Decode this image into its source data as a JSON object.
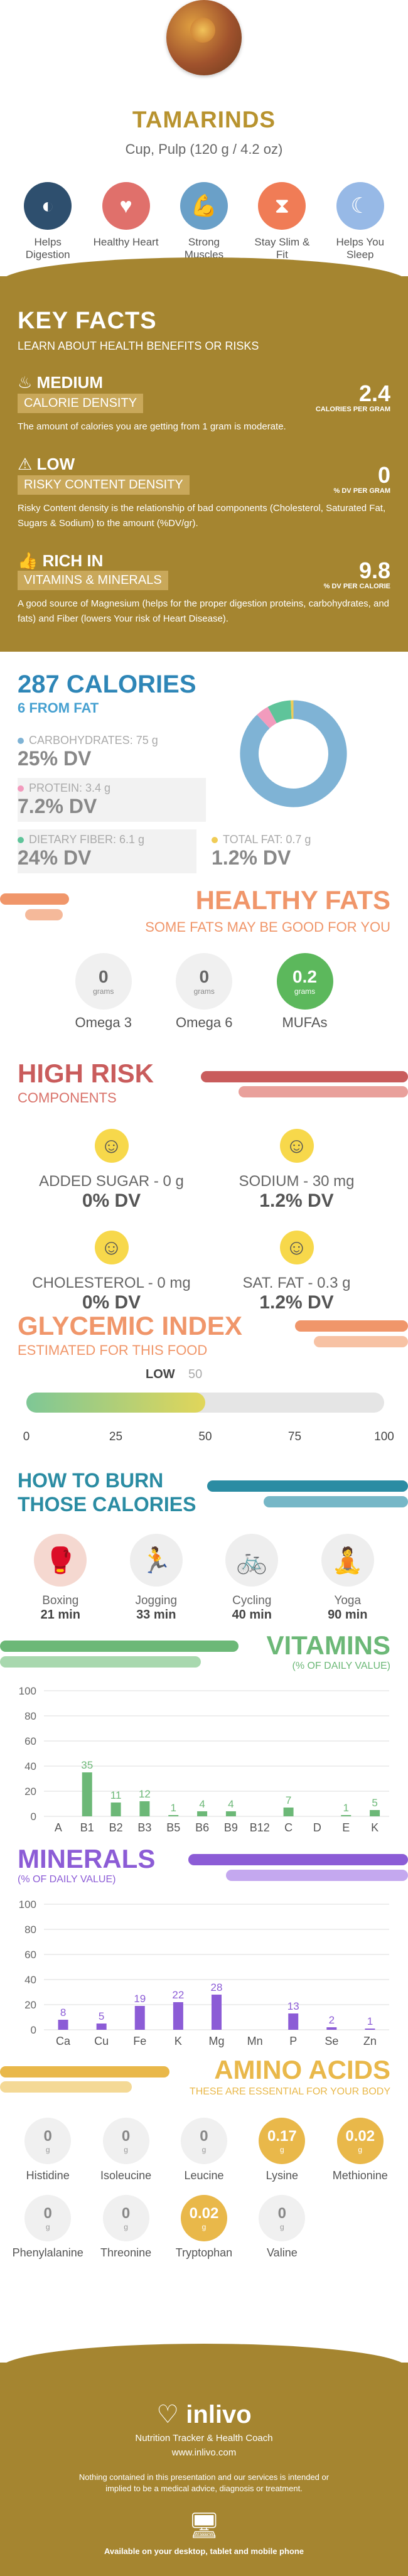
{
  "header": {
    "title": "TAMARINDS",
    "subtitle": "Cup, Pulp (120 g / 4.2 oz)"
  },
  "benefits": [
    {
      "label": "Helps Digestion",
      "icon": "stomach-icon",
      "color": "#2e4f6e"
    },
    {
      "label": "Healthy Heart",
      "icon": "heart-icon",
      "color": "#e0706b"
    },
    {
      "label": "Strong Muscles",
      "icon": "muscle-arm-icon",
      "color": "#6aa0c8"
    },
    {
      "label": "Stay Slim & Fit",
      "icon": "waist-icon",
      "color": "#f07c56"
    },
    {
      "label": "Helps You Sleep",
      "icon": "sleeping-face-icon",
      "color": "#97b9e6"
    }
  ],
  "facts": {
    "title": "KEY FACTS",
    "subtitle": "LEARN ABOUT HEALTH BENEFITS OR RISKS",
    "items": [
      {
        "level": "MEDIUM",
        "category": "CALORIE DENSITY",
        "value": "2.4",
        "unit": "CALORIES PER GRAM",
        "desc": "The amount of calories you are getting from 1 gram is moderate.",
        "icon": "flame-icon"
      },
      {
        "level": "LOW",
        "category": "RISKY CONTENT DENSITY",
        "value": "0",
        "unit": "% DV PER GRAM",
        "desc": "Risky Content density is the relationship of bad components (Cholesterol, Saturated Fat, Sugars & Sodium) to the amount (%DV/gr).",
        "icon": "warning-icon"
      },
      {
        "level": "RICH IN",
        "category": "VITAMINS & MINERALS",
        "value": "9.8",
        "unit": "% DV PER CALORIE",
        "desc": "A good source of Magnesium (helps for the proper digestion proteins, carbohydrates, and fats) and Fiber (lowers Your risk of Heart Disease).",
        "icon": "thumbs-up-icon"
      }
    ]
  },
  "calories": {
    "title": "287 CALORIES",
    "sub": "6 FROM FAT",
    "macros": [
      {
        "label": "CARBOHYDRATES: 75 g",
        "dv": "25% DV",
        "color": "#7fb3d5"
      },
      {
        "label": "PROTEIN: 3.4 g",
        "dv": "7.2% DV",
        "color": "#f29bbd"
      },
      {
        "label": "DIETARY FIBER: 6.1 g",
        "dv": "24% DV",
        "color": "#5fc49a"
      },
      {
        "label": "TOTAL FAT: 0.7 g",
        "dv": "1.2% DV",
        "color": "#f0cc56"
      }
    ],
    "donut": [
      75,
      3.4,
      6.1,
      0.7
    ]
  },
  "fats": {
    "title": "HEALTHY FATS",
    "sub": "SOME FATS MAY BE GOOD FOR YOU",
    "items": [
      {
        "value": "0",
        "unit": "grams",
        "label": "Omega 3"
      },
      {
        "value": "0",
        "unit": "grams",
        "label": "Omega 6"
      },
      {
        "value": "0.2",
        "unit": "grams",
        "label": "MUFAs"
      }
    ]
  },
  "risk": {
    "title": "HIGH RISK",
    "sub": "COMPONENTS",
    "items": [
      {
        "label": "ADDED SUGAR - 0 g",
        "dv": "0% DV"
      },
      {
        "label": "SODIUM - 30 mg",
        "dv": "1.2% DV"
      },
      {
        "label": "CHOLESTEROL - 0 mg",
        "dv": "0% DV"
      },
      {
        "label": "SAT. FAT - 0.3 g",
        "dv": "1.2% DV"
      }
    ]
  },
  "glycemic": {
    "title": "GLYCEMIC INDEX",
    "sub": "ESTIMATED FOR THIS FOOD",
    "level": "LOW",
    "value": "50",
    "ticks": [
      "0",
      "25",
      "50",
      "75",
      "100"
    ]
  },
  "burn": {
    "title": "HOW TO BURN",
    "title2": "THOSE CALORIES",
    "items": [
      {
        "activity": "Boxing",
        "time": "21 min",
        "icon": "boxing-icon"
      },
      {
        "activity": "Jogging",
        "time": "33 min",
        "icon": "running-icon"
      },
      {
        "activity": "Cycling",
        "time": "40 min",
        "icon": "bicycle-icon"
      },
      {
        "activity": "Yoga",
        "time": "90 min",
        "icon": "yoga-icon"
      }
    ]
  },
  "vitamins": {
    "title": "VITAMINS",
    "sub": "(% OF DAILY VALUE)"
  },
  "minerals": {
    "title": "MINERALS",
    "sub": "(% OF DAILY VALUE)"
  },
  "chart_data": [
    {
      "type": "bar",
      "categories": [
        "A",
        "B1",
        "B2",
        "B3",
        "B5",
        "B6",
        "B9",
        "B12",
        "C",
        "D",
        "E",
        "K"
      ],
      "values": [
        0,
        35,
        11,
        12,
        1,
        4,
        4,
        0,
        7,
        0,
        1,
        5
      ],
      "title": "VITAMINS",
      "ylim": [
        0,
        100
      ],
      "yticks": [
        "0",
        "20",
        "40",
        "60",
        "80",
        "100"
      ]
    },
    {
      "type": "bar",
      "categories": [
        "Ca",
        "Cu",
        "Fe",
        "K",
        "Mg",
        "Mn",
        "P",
        "Se",
        "Zn"
      ],
      "values": [
        8,
        5,
        19,
        22,
        28,
        0,
        13,
        2,
        1
      ],
      "title": "MINERALS",
      "ylim": [
        0,
        100
      ],
      "yticks": [
        "0",
        "20",
        "40",
        "60",
        "80",
        "100"
      ]
    }
  ],
  "amino": {
    "title": "AMINO ACIDS",
    "sub": "THESE ARE ESSENTIAL FOR YOUR BODY",
    "items": [
      {
        "value": "0",
        "unit": "g",
        "label": "Histidine",
        "hl": false
      },
      {
        "value": "0",
        "unit": "g",
        "label": "Isoleucine",
        "hl": false
      },
      {
        "value": "0",
        "unit": "g",
        "label": "Leucine",
        "hl": false
      },
      {
        "value": "0.17",
        "unit": "g",
        "label": "Lysine",
        "hl": true
      },
      {
        "value": "0.02",
        "unit": "g",
        "label": "Methionine",
        "hl": true
      },
      {
        "value": "0",
        "unit": "g",
        "label": "Phenylalanine",
        "hl": false
      },
      {
        "value": "0",
        "unit": "g",
        "label": "Threonine",
        "hl": false
      },
      {
        "value": "0.02",
        "unit": "g",
        "label": "Tryptophan",
        "hl": true
      },
      {
        "value": "0",
        "unit": "g",
        "label": "Valine",
        "hl": false
      }
    ]
  },
  "footer": {
    "logo": "inlivo",
    "line1": "Nutrition Tracker & Health Coach",
    "line2": "www.inlivo.com",
    "disclaimer": "Nothing contained in this presentation and our services is intended or implied to be a medical advice, diagnosis or treatment.",
    "available": "Available on your desktop, tablet and mobile phone"
  },
  "colors": {
    "gold": "#a58530",
    "blue": "#2e86b7",
    "orange": "#f0966a",
    "red": "#c95c5c",
    "teal": "#2b8ca3",
    "green": "#6cb877",
    "purple": "#8c5cd6",
    "amber": "#e9b84a"
  }
}
